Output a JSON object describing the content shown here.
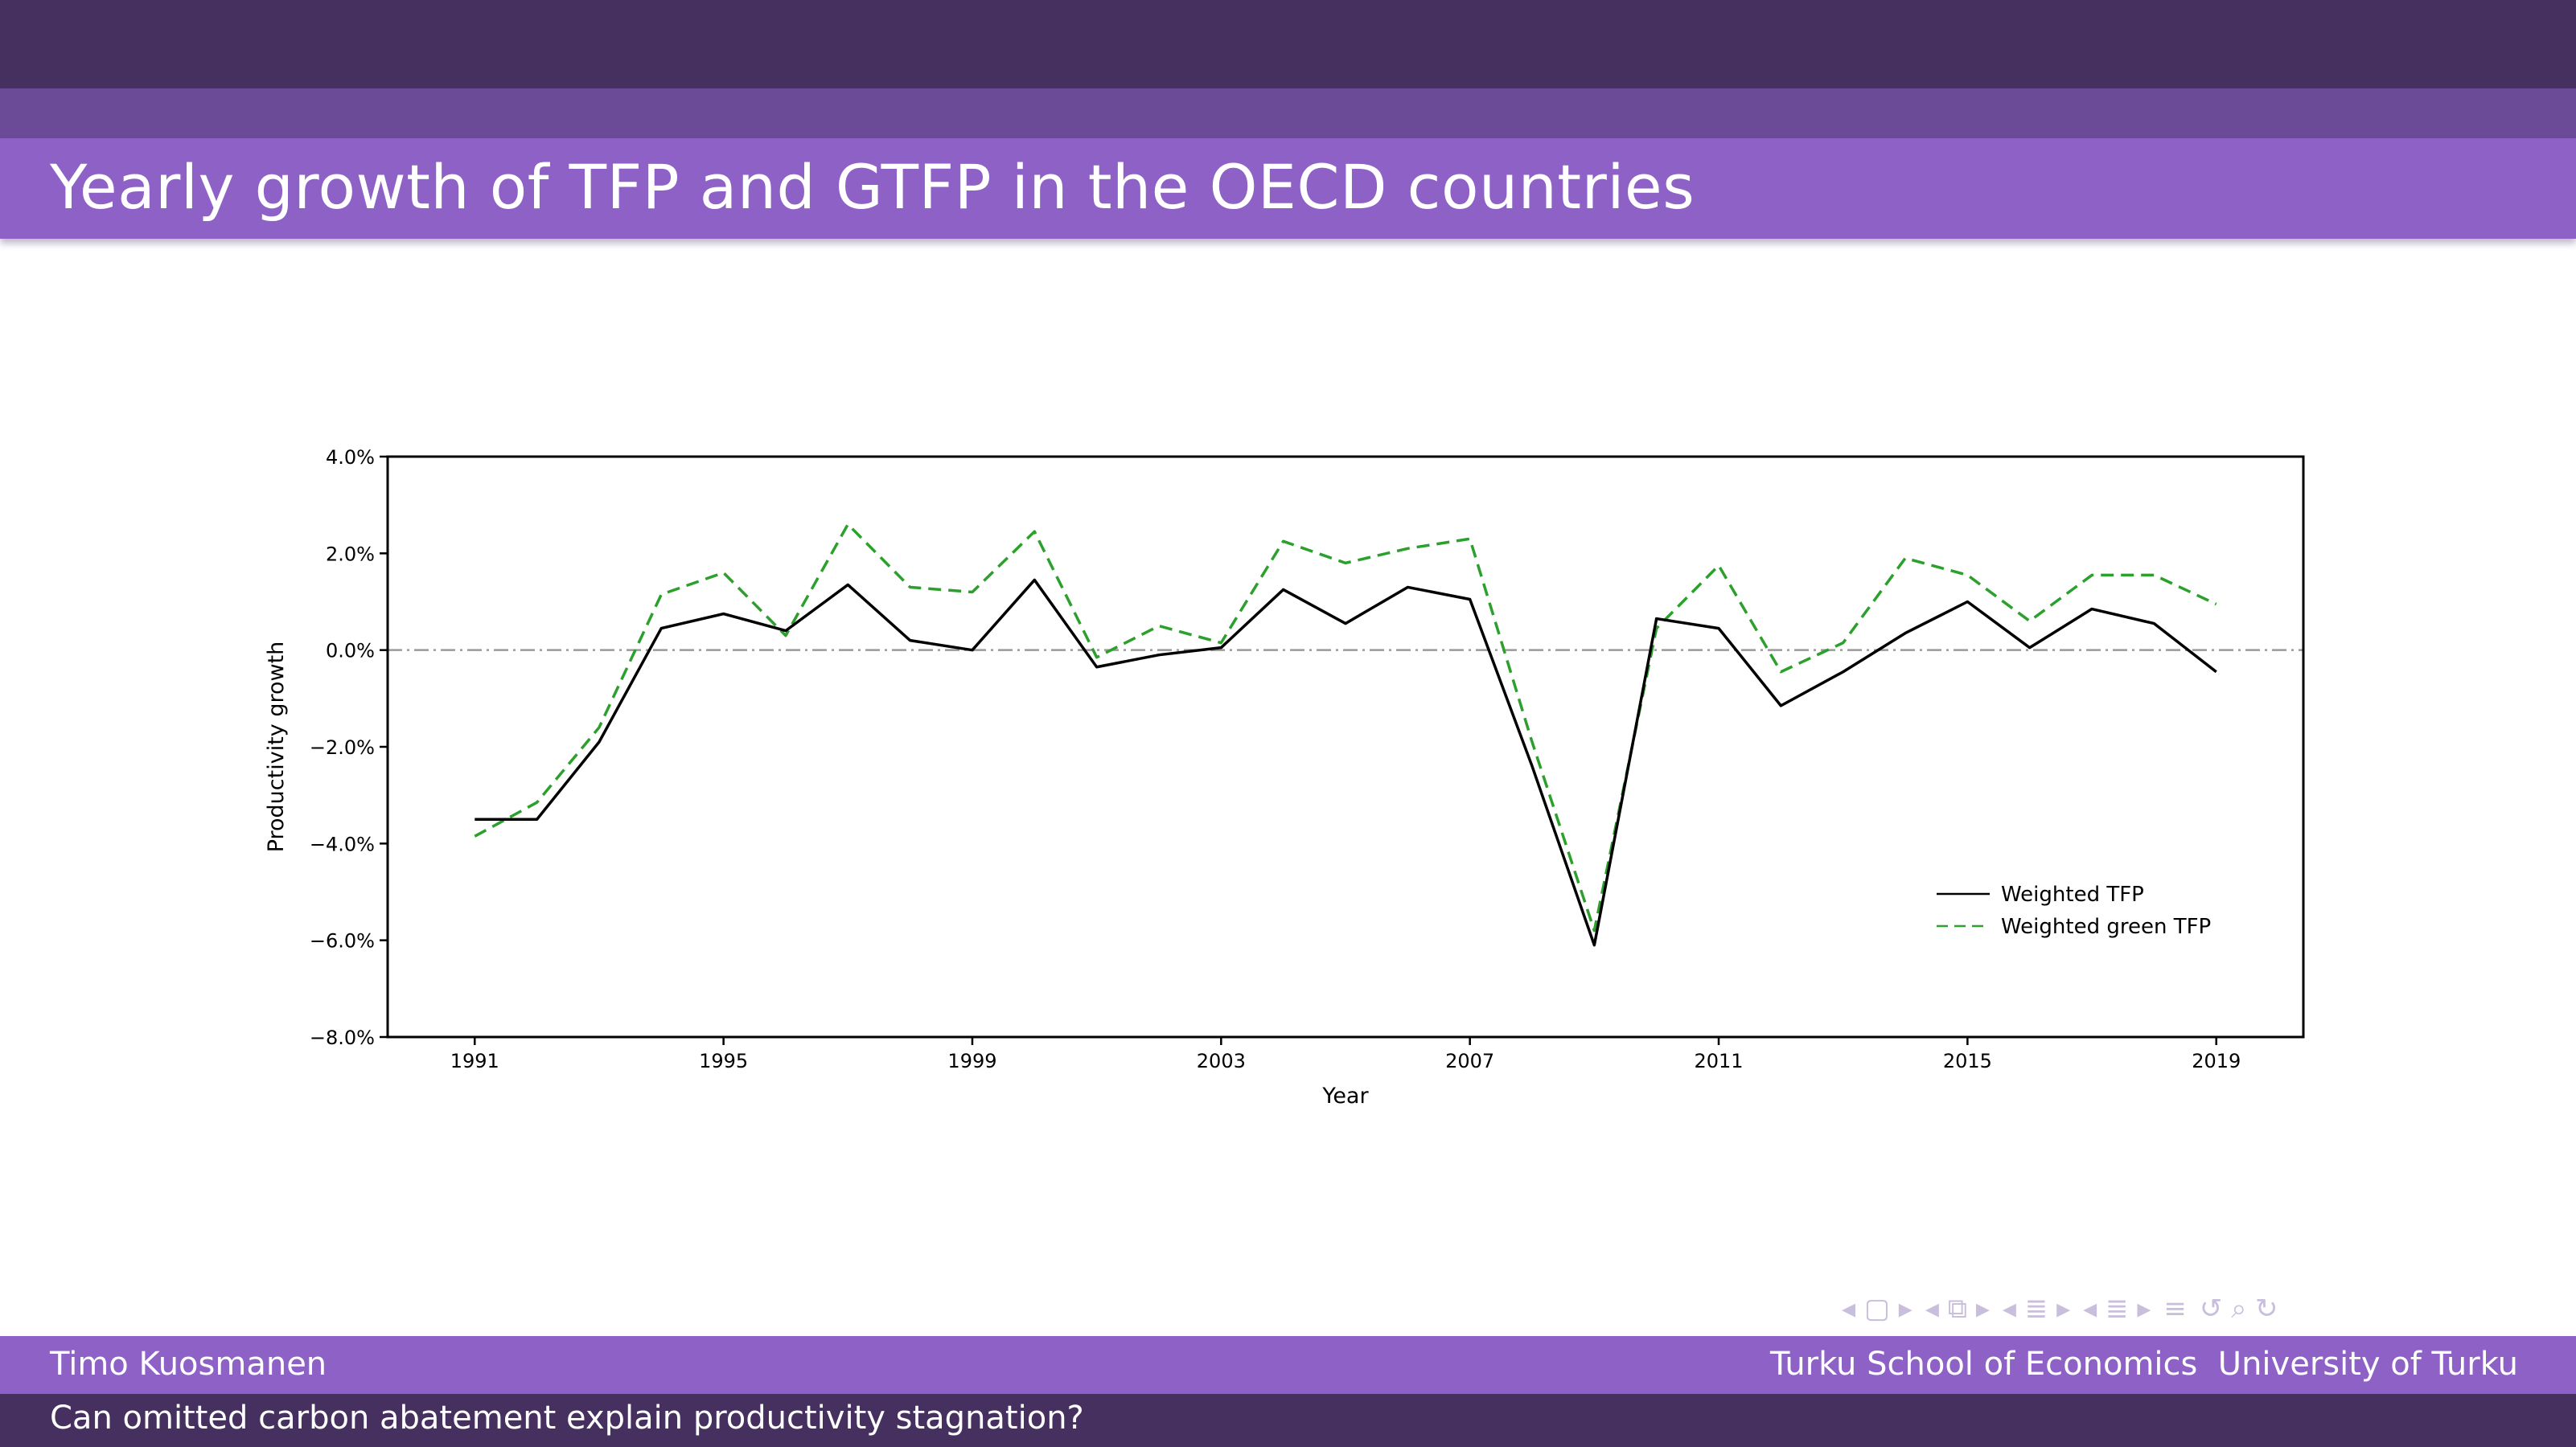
{
  "slide": {
    "title": "Yearly growth of TFP and GTFP in the OECD countries",
    "footer": {
      "author": "Timo Kuosmanen",
      "institution": "Turku School of Economics",
      "university": "University of Turku",
      "talk_title": "Can omitted carbon abatement explain productivity stagnation?"
    }
  },
  "colors": {
    "header_dark": "#46305f",
    "header_mid": "#6b4a98",
    "header_light": "#8e61c7",
    "tfp": "#000000",
    "gtfp": "#2ca02c"
  },
  "chart_data": {
    "type": "line",
    "title": "",
    "xlabel": "Year",
    "ylabel": "Productivity growth",
    "xlim": [
      1989.6,
      2020.4
    ],
    "ylim": [
      -8.0,
      4.0
    ],
    "xticks": [
      1991,
      1995,
      1999,
      2003,
      2007,
      2011,
      2015,
      2019
    ],
    "yticks": [
      -8.0,
      -6.0,
      -4.0,
      -2.0,
      0.0,
      2.0,
      4.0
    ],
    "ytick_labels": [
      "−8.0%",
      "−6.0%",
      "−4.0%",
      "−2.0%",
      "0.0%",
      "2.0%",
      "4.0%"
    ],
    "x": [
      1991,
      1992,
      1993,
      1994,
      1995,
      1996,
      1997,
      1998,
      1999,
      2000,
      2001,
      2002,
      2003,
      2004,
      2005,
      2006,
      2007,
      2008,
      2009,
      2010,
      2011,
      2012,
      2013,
      2014,
      2015,
      2016,
      2017,
      2018,
      2019
    ],
    "series": [
      {
        "name": "Weighted TFP",
        "style": "solid",
        "values": [
          -3.5,
          -3.5,
          -1.9,
          0.45,
          0.75,
          0.4,
          1.35,
          0.2,
          0.0,
          1.45,
          -0.35,
          -0.1,
          0.05,
          1.25,
          0.55,
          1.3,
          1.05,
          -2.4,
          -6.1,
          0.65,
          0.45,
          -1.15,
          -0.45,
          0.35,
          1.0,
          0.05,
          0.85,
          0.55,
          -0.45
        ]
      },
      {
        "name": "Weighted green TFP",
        "style": "dashed",
        "values": [
          -3.85,
          -3.15,
          -1.6,
          1.15,
          1.6,
          0.3,
          2.6,
          1.3,
          1.2,
          2.45,
          -0.15,
          0.5,
          0.15,
          2.25,
          1.8,
          2.1,
          2.3,
          -1.9,
          -5.8,
          0.45,
          1.75,
          -0.45,
          0.15,
          1.9,
          1.55,
          0.6,
          1.55,
          1.55,
          0.95
        ]
      }
    ],
    "zero_line": true,
    "legend_position": "lower-right"
  },
  "nav_icons": [
    "nav-first-icon",
    "nav-frame-icon",
    "nav-section-icon",
    "nav-subsection-icon",
    "nav-align-icon",
    "nav-search-icon"
  ]
}
